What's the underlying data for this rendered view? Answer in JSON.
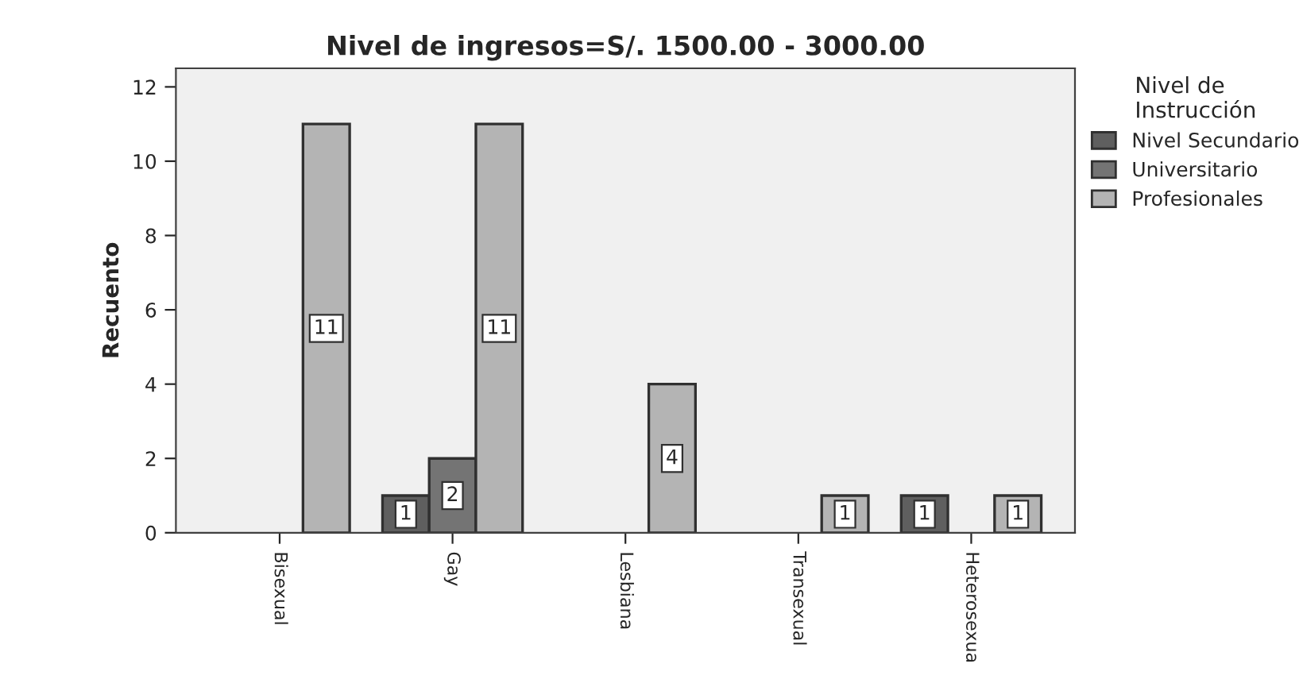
{
  "chart_data": {
    "type": "bar",
    "title": "Nivel de ingresos=S/. 1500.00 - 3000.00",
    "ylabel": "Recuento",
    "legend_title": "Nivel de\nInstrucción",
    "categories": [
      "Bisexual",
      "Gay",
      "Lesbiana",
      "Transexual",
      "Heterosexua"
    ],
    "series": [
      {
        "name": "Nivel Secundario",
        "color": "#5f5f5f",
        "values": [
          null,
          1,
          null,
          null,
          1
        ]
      },
      {
        "name": "Universitario",
        "color": "#747474",
        "values": [
          null,
          2,
          null,
          null,
          null
        ]
      },
      {
        "name": "Profesionales",
        "color": "#b4b4b4",
        "values": [
          11,
          11,
          4,
          1,
          1
        ]
      }
    ],
    "ylim": [
      0,
      12.5
    ],
    "yticks": [
      0,
      2,
      4,
      6,
      8,
      10,
      12
    ],
    "data_labels": true,
    "grid": false,
    "legend": "right"
  }
}
